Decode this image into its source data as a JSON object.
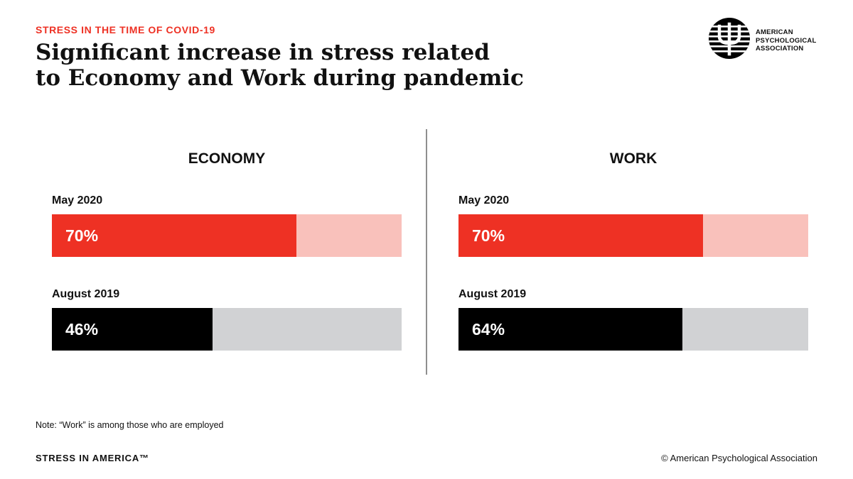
{
  "header": {
    "kicker": "STRESS IN THE TIME OF COVID-19",
    "title_line1": "Significant increase in stress related",
    "title_line2": "to Economy and Work during pandemic"
  },
  "logo": {
    "icon": "apa-psi-logo-icon",
    "line1": "AMERICAN",
    "line2": "PSYCHOLOGICAL",
    "line3": "ASSOCIATION"
  },
  "chart_data": [
    {
      "type": "bar",
      "title": "ECONOMY",
      "categories": [
        "May 2020",
        "August 2019"
      ],
      "values": [
        70,
        46
      ],
      "value_labels": [
        "70%",
        "46%"
      ],
      "xlim": [
        0,
        100
      ],
      "orientation": "horizontal",
      "colors": [
        "#ee3124",
        "#000000"
      ]
    },
    {
      "type": "bar",
      "title": "WORK",
      "categories": [
        "May 2020",
        "August 2019"
      ],
      "values": [
        70,
        64
      ],
      "value_labels": [
        "70%",
        "64%"
      ],
      "xlim": [
        0,
        100
      ],
      "orientation": "horizontal",
      "colors": [
        "#ee3124",
        "#000000"
      ]
    }
  ],
  "colors": {
    "accent_red": "#ee3124",
    "light_red": "#f9c1bb",
    "black": "#000000",
    "light_gray": "#d1d2d4"
  },
  "footer": {
    "note": "Note: “Work” is among those who are employed",
    "brand": "STRESS IN AMERICA™",
    "copyright": "© American Psychological Association"
  }
}
